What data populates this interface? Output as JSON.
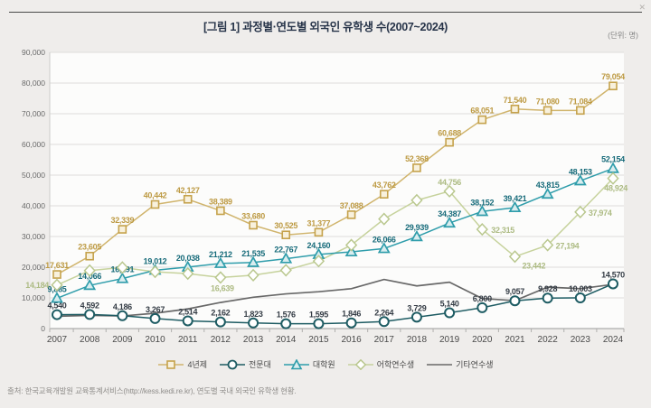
{
  "icons": {
    "close_icon": "✕"
  },
  "header": {
    "title": "[그림 1]  과정별·연도별 외국인 유학생 수(2007~2024)",
    "unit": "(단위: 명)"
  },
  "chart_data": {
    "type": "line",
    "x": [
      2007,
      2008,
      2009,
      2010,
      2011,
      2012,
      2013,
      2014,
      2015,
      2016,
      2017,
      2018,
      2019,
      2020,
      2021,
      2022,
      2023,
      2024
    ],
    "ylim": [
      0,
      90000
    ],
    "y_tick_step": 10000,
    "grid": true,
    "legend_position": "bottom",
    "series": [
      {
        "name": "4년제",
        "marker": "square",
        "color": "#c5a24c",
        "line_color": "#d0b46c",
        "marker_fill": "#f8f1dd",
        "label_color": "#bd9a43",
        "values": [
          17631,
          23605,
          32339,
          40442,
          42127,
          38389,
          33680,
          30525,
          31377,
          37088,
          43762,
          52368,
          60688,
          68051,
          71540,
          71080,
          71084,
          79054
        ],
        "labels": [
          "17,631",
          "23,605",
          "32,339",
          "40,442",
          "42,127",
          "38,389",
          "33,680",
          "30,525",
          "31,377",
          "37,088",
          "43,762",
          "52,368",
          "60,688",
          "68,051",
          "71,540",
          "71,080",
          "71,084",
          "79,054"
        ]
      },
      {
        "name": "전문대",
        "marker": "circle",
        "color": "#1e5c63",
        "line_color": "#1e5c63",
        "marker_fill": "#ffffff",
        "label_color": "#333b44",
        "values": [
          4540,
          4592,
          4186,
          3267,
          2514,
          2162,
          1823,
          1576,
          1595,
          1846,
          2264,
          3729,
          5140,
          6800,
          9057,
          9928,
          10003,
          14570
        ],
        "labels": [
          "4,540",
          "4,592",
          "4,186",
          "3,267",
          "2,514",
          "2,162",
          "1,823",
          "1,576",
          "1,595",
          "1,846",
          "2,264",
          "3,729",
          "5,140",
          "6,800",
          "9,057",
          "9,928",
          "10,003",
          "14,570"
        ]
      },
      {
        "name": "대학원",
        "marker": "triangle",
        "color": "#2f9dab",
        "line_color": "#2f9dab",
        "marker_fill": "#d9edef",
        "label_color": "#176b7a",
        "values": [
          9885,
          14066,
          16291,
          19012,
          20038,
          21212,
          21535,
          22767,
          24160,
          25000,
          26066,
          29939,
          34387,
          38152,
          39421,
          43815,
          48153,
          52154
        ],
        "labels": [
          "9,885",
          "14,066",
          "16,291",
          "19,012",
          "20,038",
          "21,212",
          "21,535",
          "22,767",
          "24,160",
          null,
          "26,066",
          "29,939",
          "34,387",
          "38,152",
          "39,421",
          "43,815",
          "48,153",
          "52,154"
        ]
      },
      {
        "name": "어학연수생",
        "marker": "diamond",
        "color": "#b9c78e",
        "line_color": "#c6d29c",
        "marker_fill": "#ffffff",
        "label_color": "#adbb83",
        "values": [
          14184,
          18900,
          19900,
          18500,
          17900,
          16639,
          17400,
          19000,
          22000,
          27200,
          35700,
          41800,
          44756,
          32315,
          23442,
          27194,
          37974,
          48924
        ],
        "labels": [
          "14,184",
          null,
          null,
          null,
          null,
          "16,639",
          null,
          null,
          null,
          null,
          null,
          null,
          "44,756",
          "32,315",
          "23,442",
          "27,194",
          "37,974",
          "48,924"
        ]
      },
      {
        "name": "기타연수생",
        "marker": "none",
        "color": "#686868",
        "line_color": "#686868",
        "values": [
          4000,
          4300,
          4100,
          5000,
          6400,
          8500,
          10200,
          11300,
          12000,
          13000,
          16000,
          13900,
          15100,
          9800,
          9100,
          13500,
          13000,
          14400
        ],
        "labels": [
          null,
          null,
          null,
          null,
          null,
          null,
          null,
          null,
          null,
          null,
          null,
          null,
          null,
          null,
          null,
          null,
          null,
          null
        ]
      }
    ]
  },
  "footer": {
    "source": "출처: 한국교육개발원 교육통계서비스(http://kess.kedi.re.kr), 연도별 국내 외국인 유학생 현황."
  }
}
